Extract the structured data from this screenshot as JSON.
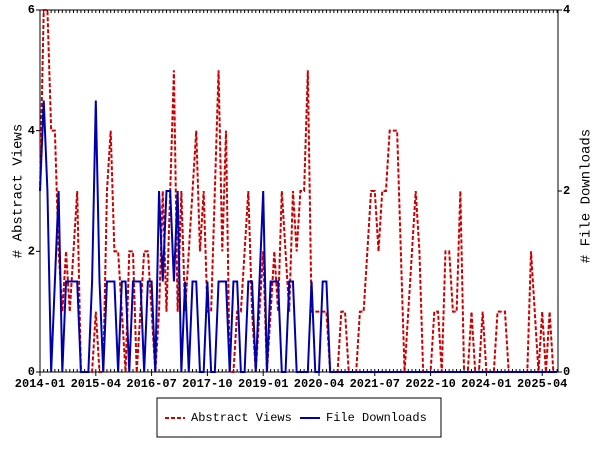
{
  "chart_data": {
    "type": "line",
    "x": [
      "2014-01",
      "2014-02",
      "2014-03",
      "2014-04",
      "2014-05",
      "2014-06",
      "2014-07",
      "2014-08",
      "2014-09",
      "2014-10",
      "2014-11",
      "2014-12",
      "2015-01",
      "2015-02",
      "2015-03",
      "2015-04",
      "2015-05",
      "2015-06",
      "2015-07",
      "2015-08",
      "2015-09",
      "2015-10",
      "2015-11",
      "2015-12",
      "2016-01",
      "2016-02",
      "2016-03",
      "2016-04",
      "2016-05",
      "2016-06",
      "2016-07",
      "2016-08",
      "2016-09",
      "2016-10",
      "2016-11",
      "2016-12",
      "2017-01",
      "2017-02",
      "2017-03",
      "2017-04",
      "2017-05",
      "2017-06",
      "2017-07",
      "2017-08",
      "2017-09",
      "2017-10",
      "2017-11",
      "2017-12",
      "2018-01",
      "2018-02",
      "2018-03",
      "2018-04",
      "2018-05",
      "2018-06",
      "2018-07",
      "2018-08",
      "2018-09",
      "2018-10",
      "2018-11",
      "2018-12",
      "2019-01",
      "2019-02",
      "2019-03",
      "2019-04",
      "2019-05",
      "2019-06",
      "2019-07",
      "2019-08",
      "2019-09",
      "2019-10",
      "2019-11",
      "2019-12",
      "2020-01",
      "2020-02",
      "2020-03",
      "2020-04",
      "2020-05",
      "2020-06",
      "2020-07",
      "2020-08",
      "2020-09",
      "2020-10",
      "2020-11",
      "2020-12",
      "2021-01",
      "2021-02",
      "2021-03",
      "2021-04",
      "2021-05",
      "2021-06",
      "2021-07",
      "2021-08",
      "2021-09",
      "2021-10",
      "2021-11",
      "2021-12",
      "2022-01",
      "2022-02",
      "2022-03",
      "2022-04",
      "2022-05",
      "2022-06",
      "2022-07",
      "2022-08",
      "2022-09",
      "2022-10",
      "2022-11",
      "2022-12",
      "2023-01",
      "2023-02",
      "2023-03",
      "2023-04",
      "2023-05",
      "2023-06",
      "2023-07",
      "2023-08",
      "2023-09",
      "2023-10",
      "2023-11",
      "2023-12",
      "2024-01",
      "2024-02",
      "2024-03",
      "2024-04",
      "2024-05",
      "2024-06",
      "2024-07",
      "2024-08",
      "2024-09",
      "2024-10",
      "2024-11",
      "2024-12",
      "2025-01",
      "2025-02",
      "2025-03",
      "2025-04",
      "2025-05",
      "2025-06",
      "2025-07",
      "2025-08"
    ],
    "xticks": [
      "2014-01",
      "2015-04",
      "2016-07",
      "2017-10",
      "2019-01",
      "2020-04",
      "2021-07",
      "2022-10",
      "2024-01",
      "2025-04"
    ],
    "ylabel": "# Abstract Views",
    "y2label": "# File Downloads",
    "ylim": [
      0,
      6
    ],
    "yticks": [
      0,
      2,
      4,
      6
    ],
    "y2lim": [
      0,
      4
    ],
    "y2ticks": [
      0,
      2,
      4
    ],
    "series": [
      {
        "name": "Abstract Views",
        "color": "#cc0000",
        "style": "dashed",
        "axis": "y",
        "values": [
          3,
          6,
          6,
          4,
          4,
          2,
          1,
          2,
          1,
          2,
          3,
          0,
          0,
          0,
          0,
          1,
          0,
          0,
          3,
          4,
          2,
          2,
          1,
          0,
          2,
          2,
          0,
          1,
          2,
          2,
          1,
          0,
          1,
          3,
          1,
          3,
          5,
          1,
          3,
          1,
          2,
          3,
          4,
          2,
          3,
          1,
          1,
          3,
          5,
          2,
          4,
          0,
          0,
          1,
          1,
          2,
          3,
          1,
          0,
          1,
          2,
          0,
          1,
          2,
          1,
          3,
          2,
          1,
          3,
          2,
          3,
          3,
          5,
          1,
          1,
          1,
          1,
          1,
          0,
          0,
          0,
          1,
          1,
          0,
          0,
          0,
          1,
          1,
          2,
          3,
          3,
          2,
          3,
          3,
          4,
          4,
          4,
          2,
          0,
          1,
          2,
          3,
          2,
          0,
          0,
          0,
          1,
          1,
          0,
          2,
          2,
          1,
          1,
          3,
          0,
          0,
          1,
          0,
          0,
          1,
          0,
          0,
          0,
          1,
          1,
          1,
          0,
          0,
          0,
          0,
          0,
          0,
          2,
          1,
          0,
          1,
          0,
          1,
          0,
          0
        ]
      },
      {
        "name": "File Downloads",
        "color": "#0000aa",
        "style": "solid",
        "axis": "y2",
        "values": [
          2,
          3,
          2,
          0,
          1,
          2,
          0,
          1,
          1,
          1,
          1,
          0,
          0,
          0,
          1,
          3,
          1,
          0,
          1,
          1,
          1,
          0,
          1,
          1,
          0,
          1,
          1,
          1,
          0,
          1,
          1,
          0,
          2,
          1,
          2,
          2,
          1,
          2,
          0,
          1,
          0,
          1,
          1,
          0,
          0,
          1,
          0,
          0,
          1,
          1,
          1,
          0,
          1,
          1,
          0,
          0,
          1,
          1,
          0,
          1,
          2,
          0,
          1,
          1,
          1,
          0,
          0,
          1,
          1,
          0,
          0,
          0,
          0,
          1,
          0,
          0,
          1,
          1,
          0,
          0,
          0,
          0,
          0,
          0,
          0,
          0,
          0,
          0,
          0,
          0,
          0,
          0,
          0,
          0,
          0,
          0,
          0,
          0,
          0,
          0,
          0,
          0,
          0,
          0,
          0,
          0,
          0,
          0,
          0,
          0,
          0,
          0,
          0,
          0,
          0,
          0,
          0,
          0,
          0,
          0,
          0,
          0,
          0,
          0,
          0,
          0,
          0,
          0,
          0,
          0,
          0,
          0,
          0,
          0,
          0,
          0,
          0,
          0,
          0,
          0
        ]
      }
    ]
  }
}
